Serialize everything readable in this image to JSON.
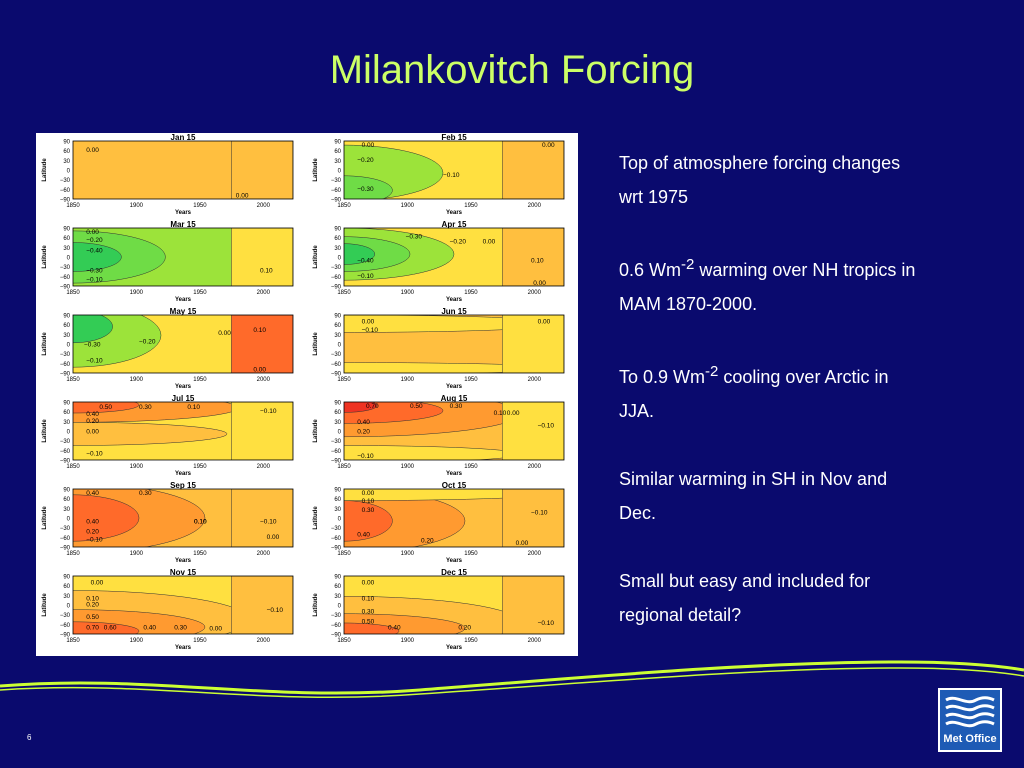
{
  "slide": {
    "title": "Milankovitch Forcing",
    "page_number": "6",
    "bullets": [
      {
        "text": "Top of atmosphere forcing changes wrt 1975"
      },
      {
        "pre": "0.6 Wm",
        "sup": "-2",
        "post": " warming over NH tropics in MAM 1870-2000."
      },
      {
        "pre": "To 0.9 Wm",
        "sup": "-2",
        "post": " cooling over Arctic in JJA."
      },
      {
        "text": "Similar warming in SH in Nov and Dec."
      },
      {
        "text": "Small but easy and included for regional detail?"
      }
    ],
    "logo_text": "Met Office"
  },
  "figure": {
    "ylabel": "Latitude",
    "xlabel": "Years",
    "xticks": [
      "1850",
      "1900",
      "1950",
      "2000"
    ],
    "yticks": [
      "90",
      "60",
      "30",
      "0",
      "−30",
      "−60",
      "−90"
    ],
    "panels": [
      {
        "month": "Jan 15",
        "labels": [
          "0.00",
          "0.00"
        ]
      },
      {
        "month": "Feb 15",
        "labels": [
          "0.00",
          "−0.20",
          "−0.10",
          "−0.30",
          "0.00"
        ]
      },
      {
        "month": "Mar 15",
        "labels": [
          "0.00",
          "−0.20",
          "−0.40",
          "−0.30",
          "−0.10",
          "0.10"
        ]
      },
      {
        "month": "Apr 15",
        "labels": [
          "−0.30",
          "−0.20",
          "0.00",
          "−0.40",
          "−0.10",
          "0.10",
          "0.00"
        ]
      },
      {
        "month": "May 15",
        "labels": [
          "−0.30",
          "−0.20",
          "−0.10",
          "0.00",
          "0.10",
          "0.00"
        ]
      },
      {
        "month": "Jun 15",
        "labels": [
          "0.00",
          "−0.10",
          "0.00"
        ]
      },
      {
        "month": "Jul 15",
        "labels": [
          "0.50",
          "0.30",
          "0.10",
          "0.40",
          "0.20",
          "0.00",
          "−0.10",
          "−0.10"
        ]
      },
      {
        "month": "Aug 15",
        "labels": [
          "0.70",
          "0.50",
          "0.30",
          "0.40",
          "0.20",
          "0.10",
          "0.00",
          "−0.10",
          "−0.10"
        ]
      },
      {
        "month": "Sep 15",
        "labels": [
          "0.40",
          "0.30",
          "0.40",
          "0.20",
          "0.10",
          "−0.10",
          "0.10",
          "0.00",
          "−0.10"
        ]
      },
      {
        "month": "Oct 15",
        "labels": [
          "0.00",
          "0.10",
          "0.30",
          "−0.10",
          "0.40",
          "0.20",
          "0.00"
        ]
      },
      {
        "month": "Nov 15",
        "labels": [
          "0.00",
          "0.10",
          "0.20",
          "0.50",
          "0.70",
          "0.60",
          "0.40",
          "0.30",
          "0.00",
          "−0.10"
        ]
      },
      {
        "month": "Dec 15",
        "labels": [
          "0.00",
          "0.10",
          "0.30",
          "0.50",
          "0.40",
          "0.20",
          "−0.10"
        ]
      }
    ]
  },
  "colors": {
    "background": "#0a0a6e",
    "title": "#ccff66",
    "swoosh": "#ccff33",
    "logo": "#1e5bb5"
  }
}
